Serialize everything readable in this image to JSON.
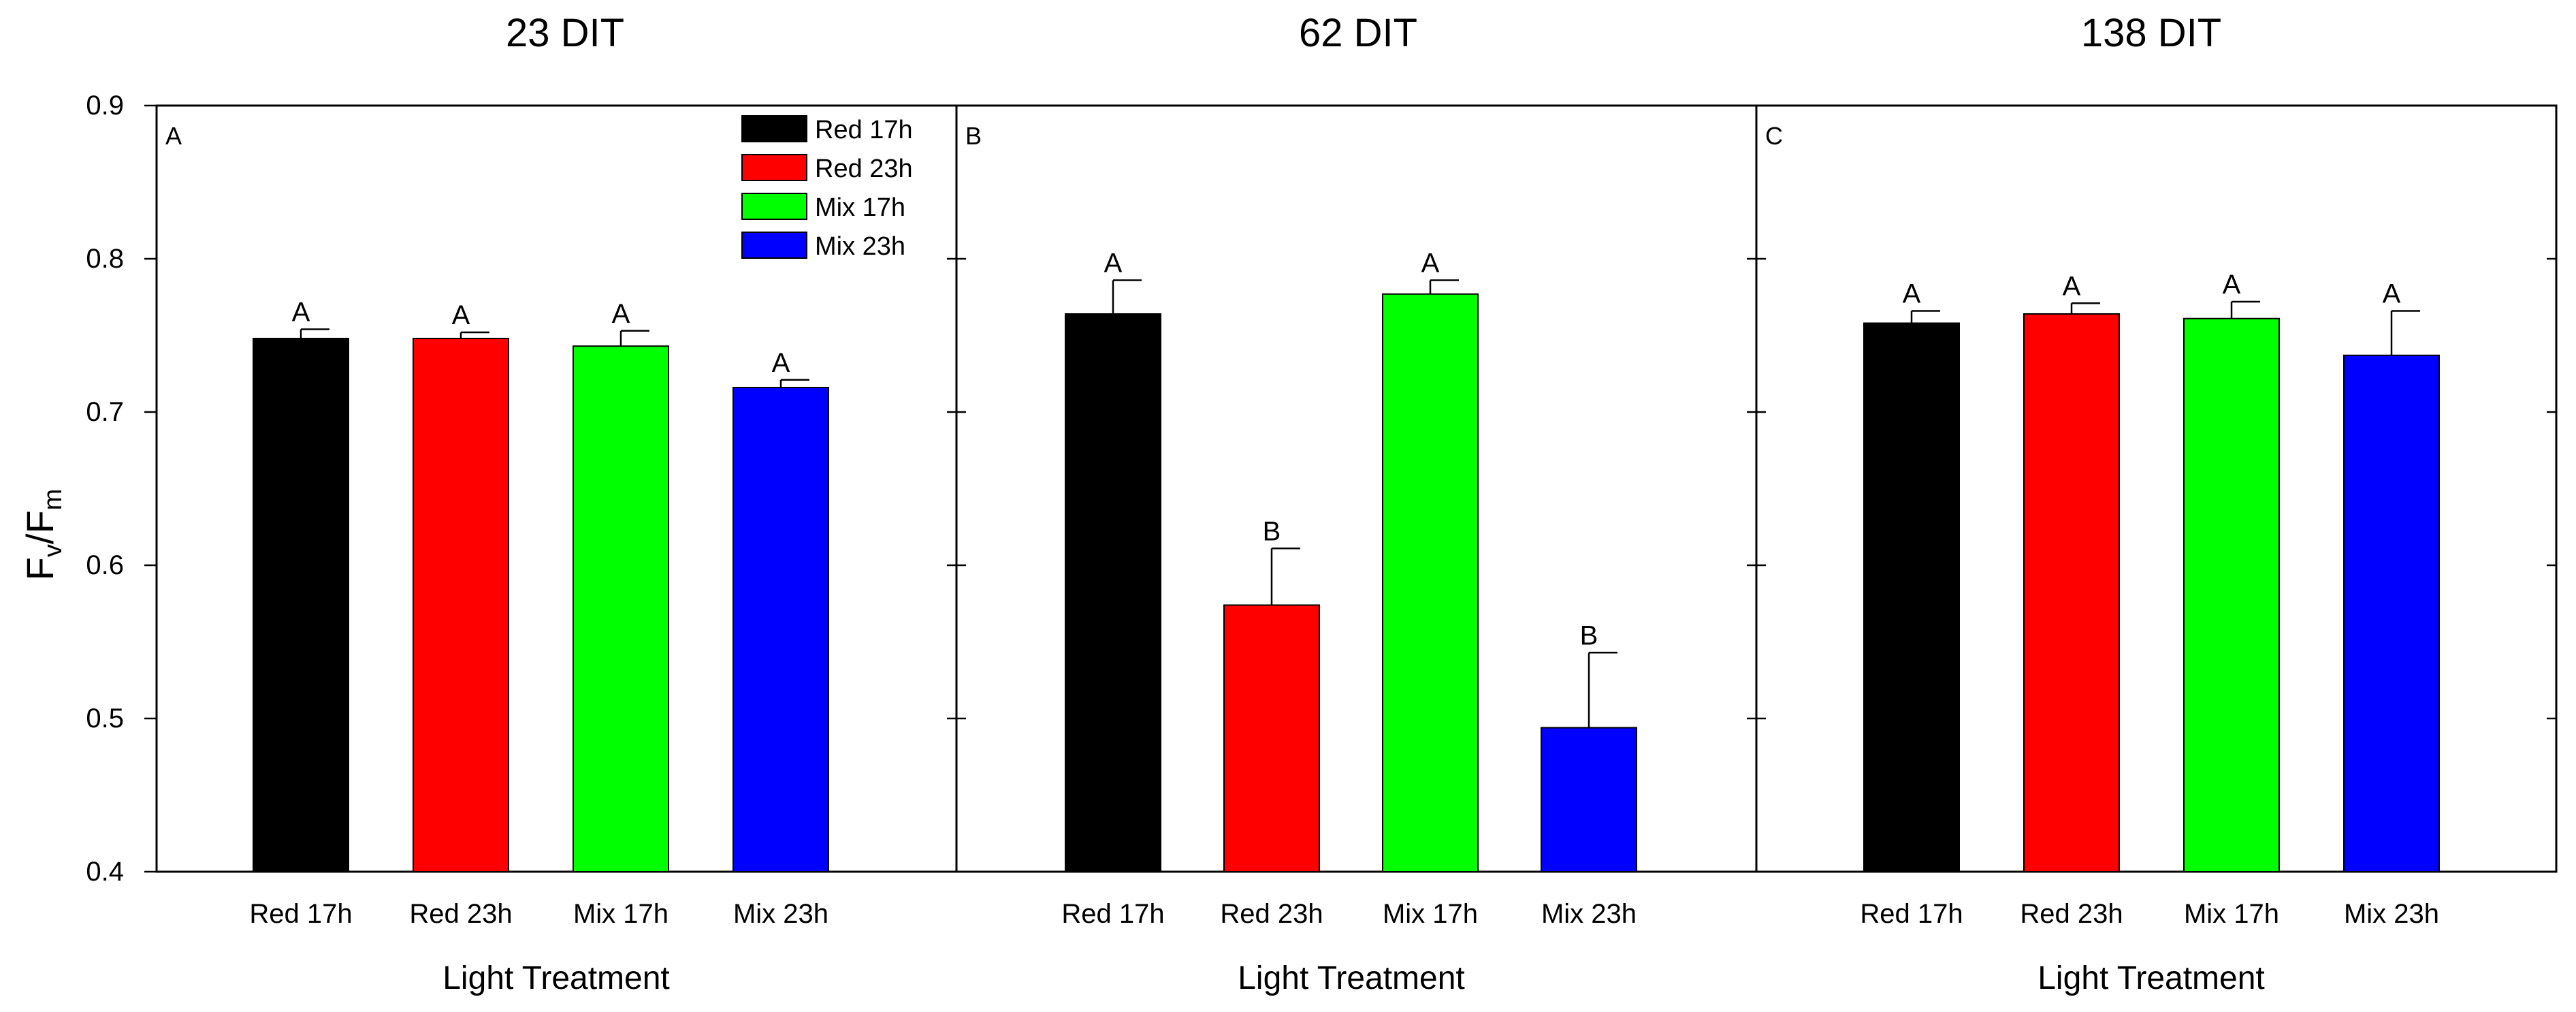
{
  "chart_data": [
    {
      "type": "bar",
      "panel_label": "A",
      "title": "23 DIT",
      "xlabel": "Light Treatment",
      "ylabel": {
        "main1": "F",
        "sub1": "v",
        "slash": "/",
        "main2": "F",
        "sub2": "m"
      },
      "ylim": [
        0.4,
        0.9
      ],
      "yticks": [
        "0.4",
        "0.5",
        "0.6",
        "0.7",
        "0.8",
        "0.9"
      ],
      "categories": [
        "Red 17h",
        "Red 23h",
        "Mix 17h",
        "Mix 23h"
      ],
      "values": [
        0.748,
        0.748,
        0.743,
        0.716
      ],
      "errors": [
        0.006,
        0.004,
        0.01,
        0.005
      ],
      "significance": [
        "A",
        "A",
        "A",
        "A"
      ],
      "colors": [
        "#000000",
        "#ff0000",
        "#00ff00",
        "#0000ff"
      ]
    },
    {
      "type": "bar",
      "panel_label": "B",
      "title": "62 DIT",
      "xlabel": "Light Treatment",
      "ylim": [
        0.4,
        0.9
      ],
      "categories": [
        "Red 17h",
        "Red 23h",
        "Mix 17h",
        "Mix 23h"
      ],
      "values": [
        0.764,
        0.574,
        0.777,
        0.494
      ],
      "errors": [
        0.022,
        0.037,
        0.009,
        0.049
      ],
      "significance": [
        "A",
        "B",
        "A",
        "B"
      ],
      "colors": [
        "#000000",
        "#ff0000",
        "#00ff00",
        "#0000ff"
      ]
    },
    {
      "type": "bar",
      "panel_label": "C",
      "title": "138 DIT",
      "xlabel": "Light Treatment",
      "ylim": [
        0.4,
        0.9
      ],
      "categories": [
        "Red 17h",
        "Red 23h",
        "Mix 17h",
        "Mix 23h"
      ],
      "values": [
        0.758,
        0.764,
        0.761,
        0.737
      ],
      "errors": [
        0.008,
        0.007,
        0.011,
        0.029
      ],
      "significance": [
        "A",
        "A",
        "A",
        "A"
      ],
      "colors": [
        "#000000",
        "#ff0000",
        "#00ff00",
        "#0000ff"
      ]
    }
  ],
  "legend": {
    "items": [
      {
        "label": "Red 17h",
        "color": "#000000"
      },
      {
        "label": "Red 23h",
        "color": "#ff0000"
      },
      {
        "label": "Mix 17h",
        "color": "#00ff00"
      },
      {
        "label": "Mix 23h",
        "color": "#0000ff"
      }
    ]
  }
}
